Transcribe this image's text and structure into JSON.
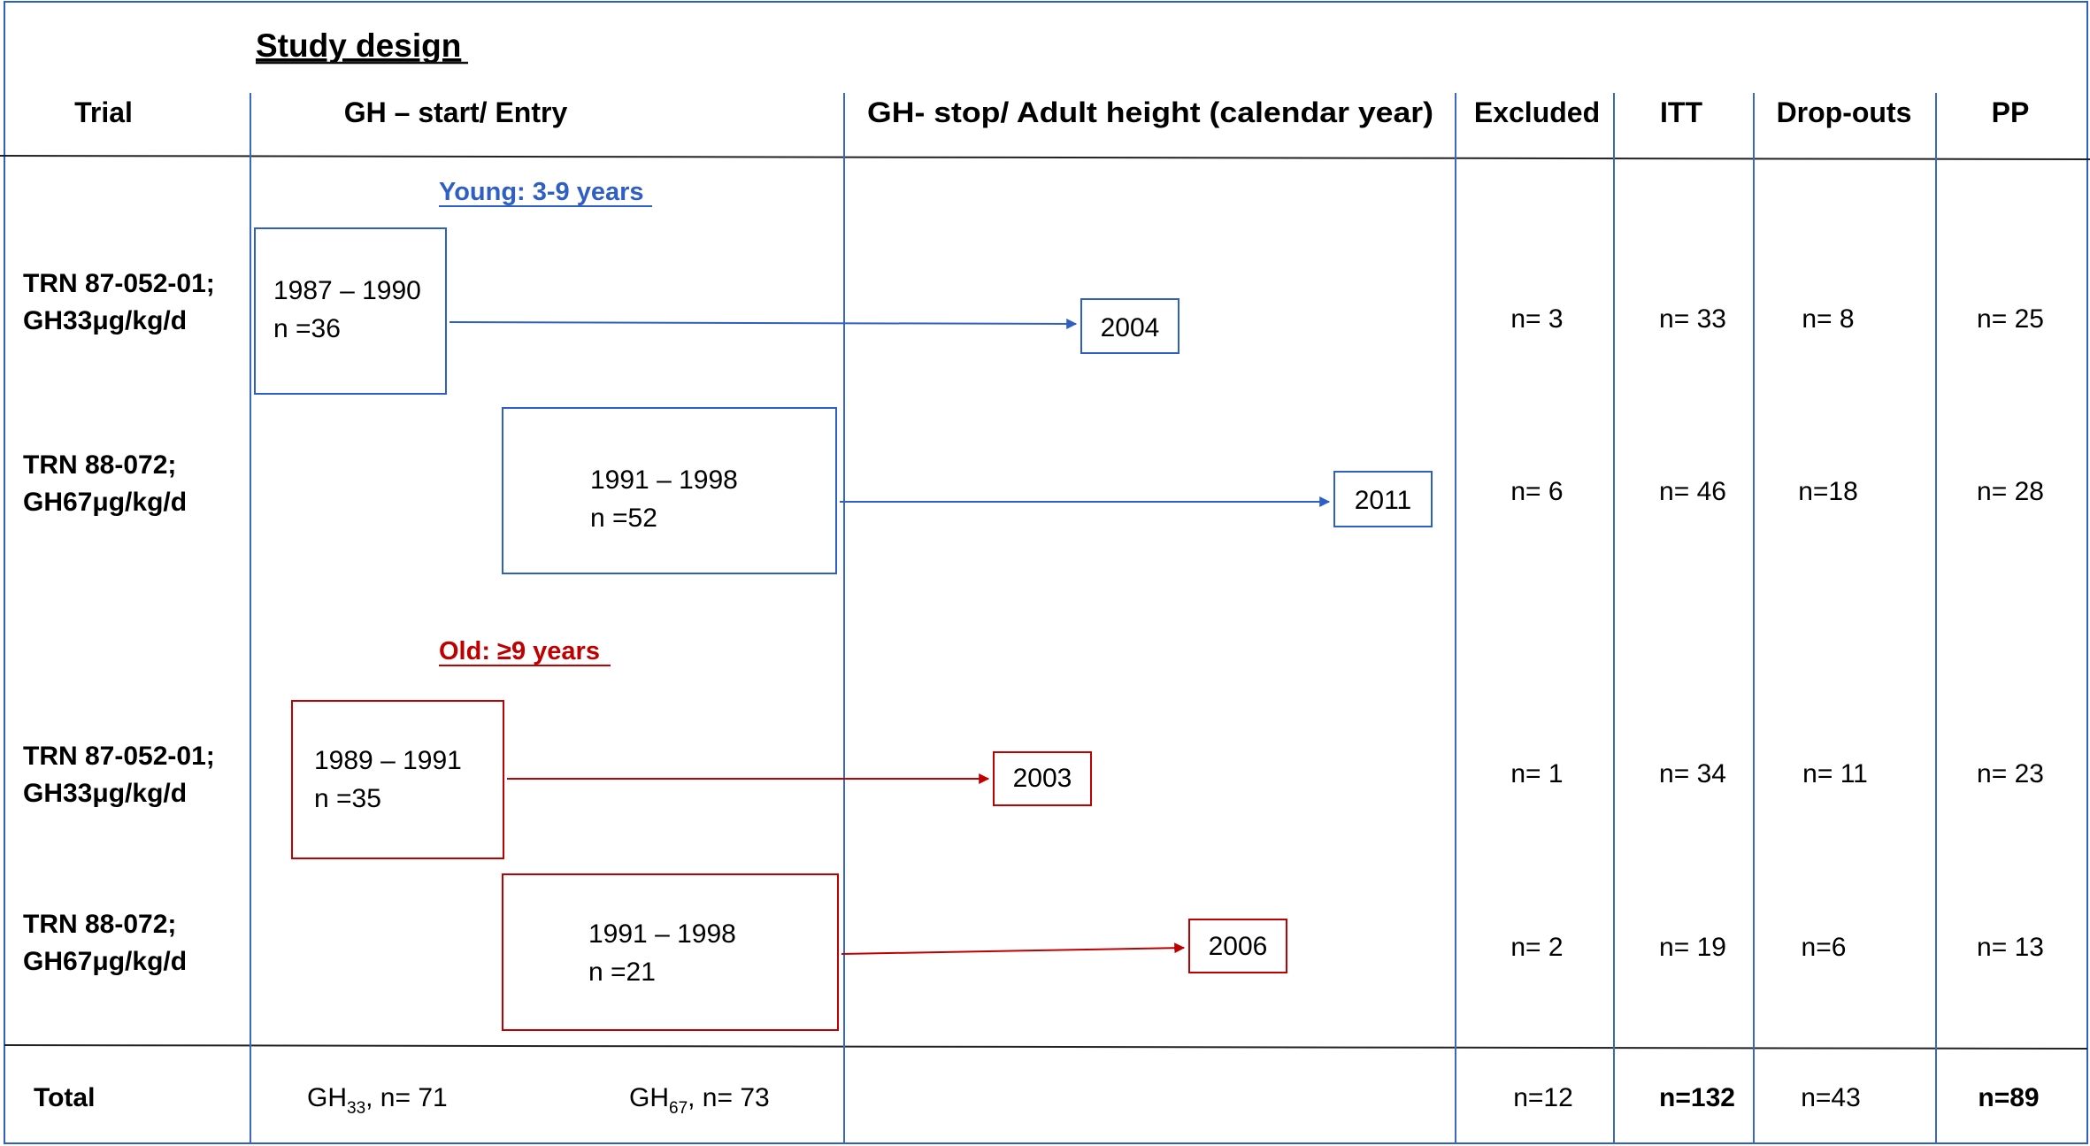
{
  "title": "Study design",
  "headers": {
    "trial": "Trial",
    "entry": "GH – start/ Entry",
    "stop": "GH- stop/ Adult height (calendar year)",
    "excluded": "Excluded",
    "itt": "ITT",
    "dropouts": "Drop-outs",
    "pp": "PP"
  },
  "groups": {
    "young": "Young: 3-9 years",
    "old": "Old: ≥9 years"
  },
  "rows": [
    {
      "trial_line1": "TRN 87-052-01;",
      "trial_line2": "GH33μg/kg/d",
      "entry_years": "1987 – 1990",
      "entry_n": "n =36",
      "stop_year": "2004",
      "excluded": "n= 3",
      "itt": "n= 33",
      "dropouts": "n= 8",
      "pp": "n= 25"
    },
    {
      "trial_line1": "TRN 88-072;",
      "trial_line2": "GH67μg/kg/d",
      "entry_years": "1991 – 1998",
      "entry_n": "n =52",
      "stop_year": "2011",
      "excluded": "n= 6",
      "itt": "n= 46",
      "dropouts": "n=18",
      "pp": "n= 28"
    },
    {
      "trial_line1": "TRN 87-052-01;",
      "trial_line2": "GH33μg/kg/d",
      "entry_years": "1989 – 1991",
      "entry_n": "n =35",
      "stop_year": "2003",
      "excluded": "n= 1",
      "itt": "n= 34",
      "dropouts": "n= 11",
      "pp": "n= 23"
    },
    {
      "trial_line1": "TRN 88-072;",
      "trial_line2": "GH67μg/kg/d",
      "entry_years": "1991 – 1998",
      "entry_n": "n =21",
      "stop_year": "2006",
      "excluded": "n= 2",
      "itt": "n= 19",
      "dropouts": "n=6",
      "pp": "n= 13"
    }
  ],
  "total": {
    "label": "Total",
    "gh33_base": "GH",
    "gh33_sub": "33",
    "gh33_n": ", n= 71",
    "gh67_base": "GH",
    "gh67_sub": "67",
    "gh67_n": ", n= 73",
    "excluded": "n=12",
    "itt": "n=132",
    "dropouts": "n=43",
    "pp": "n=89"
  },
  "colors": {
    "young": "#2f5fc4",
    "old": "#c00000",
    "grid": "#3b67c4",
    "rule": "#222222"
  }
}
